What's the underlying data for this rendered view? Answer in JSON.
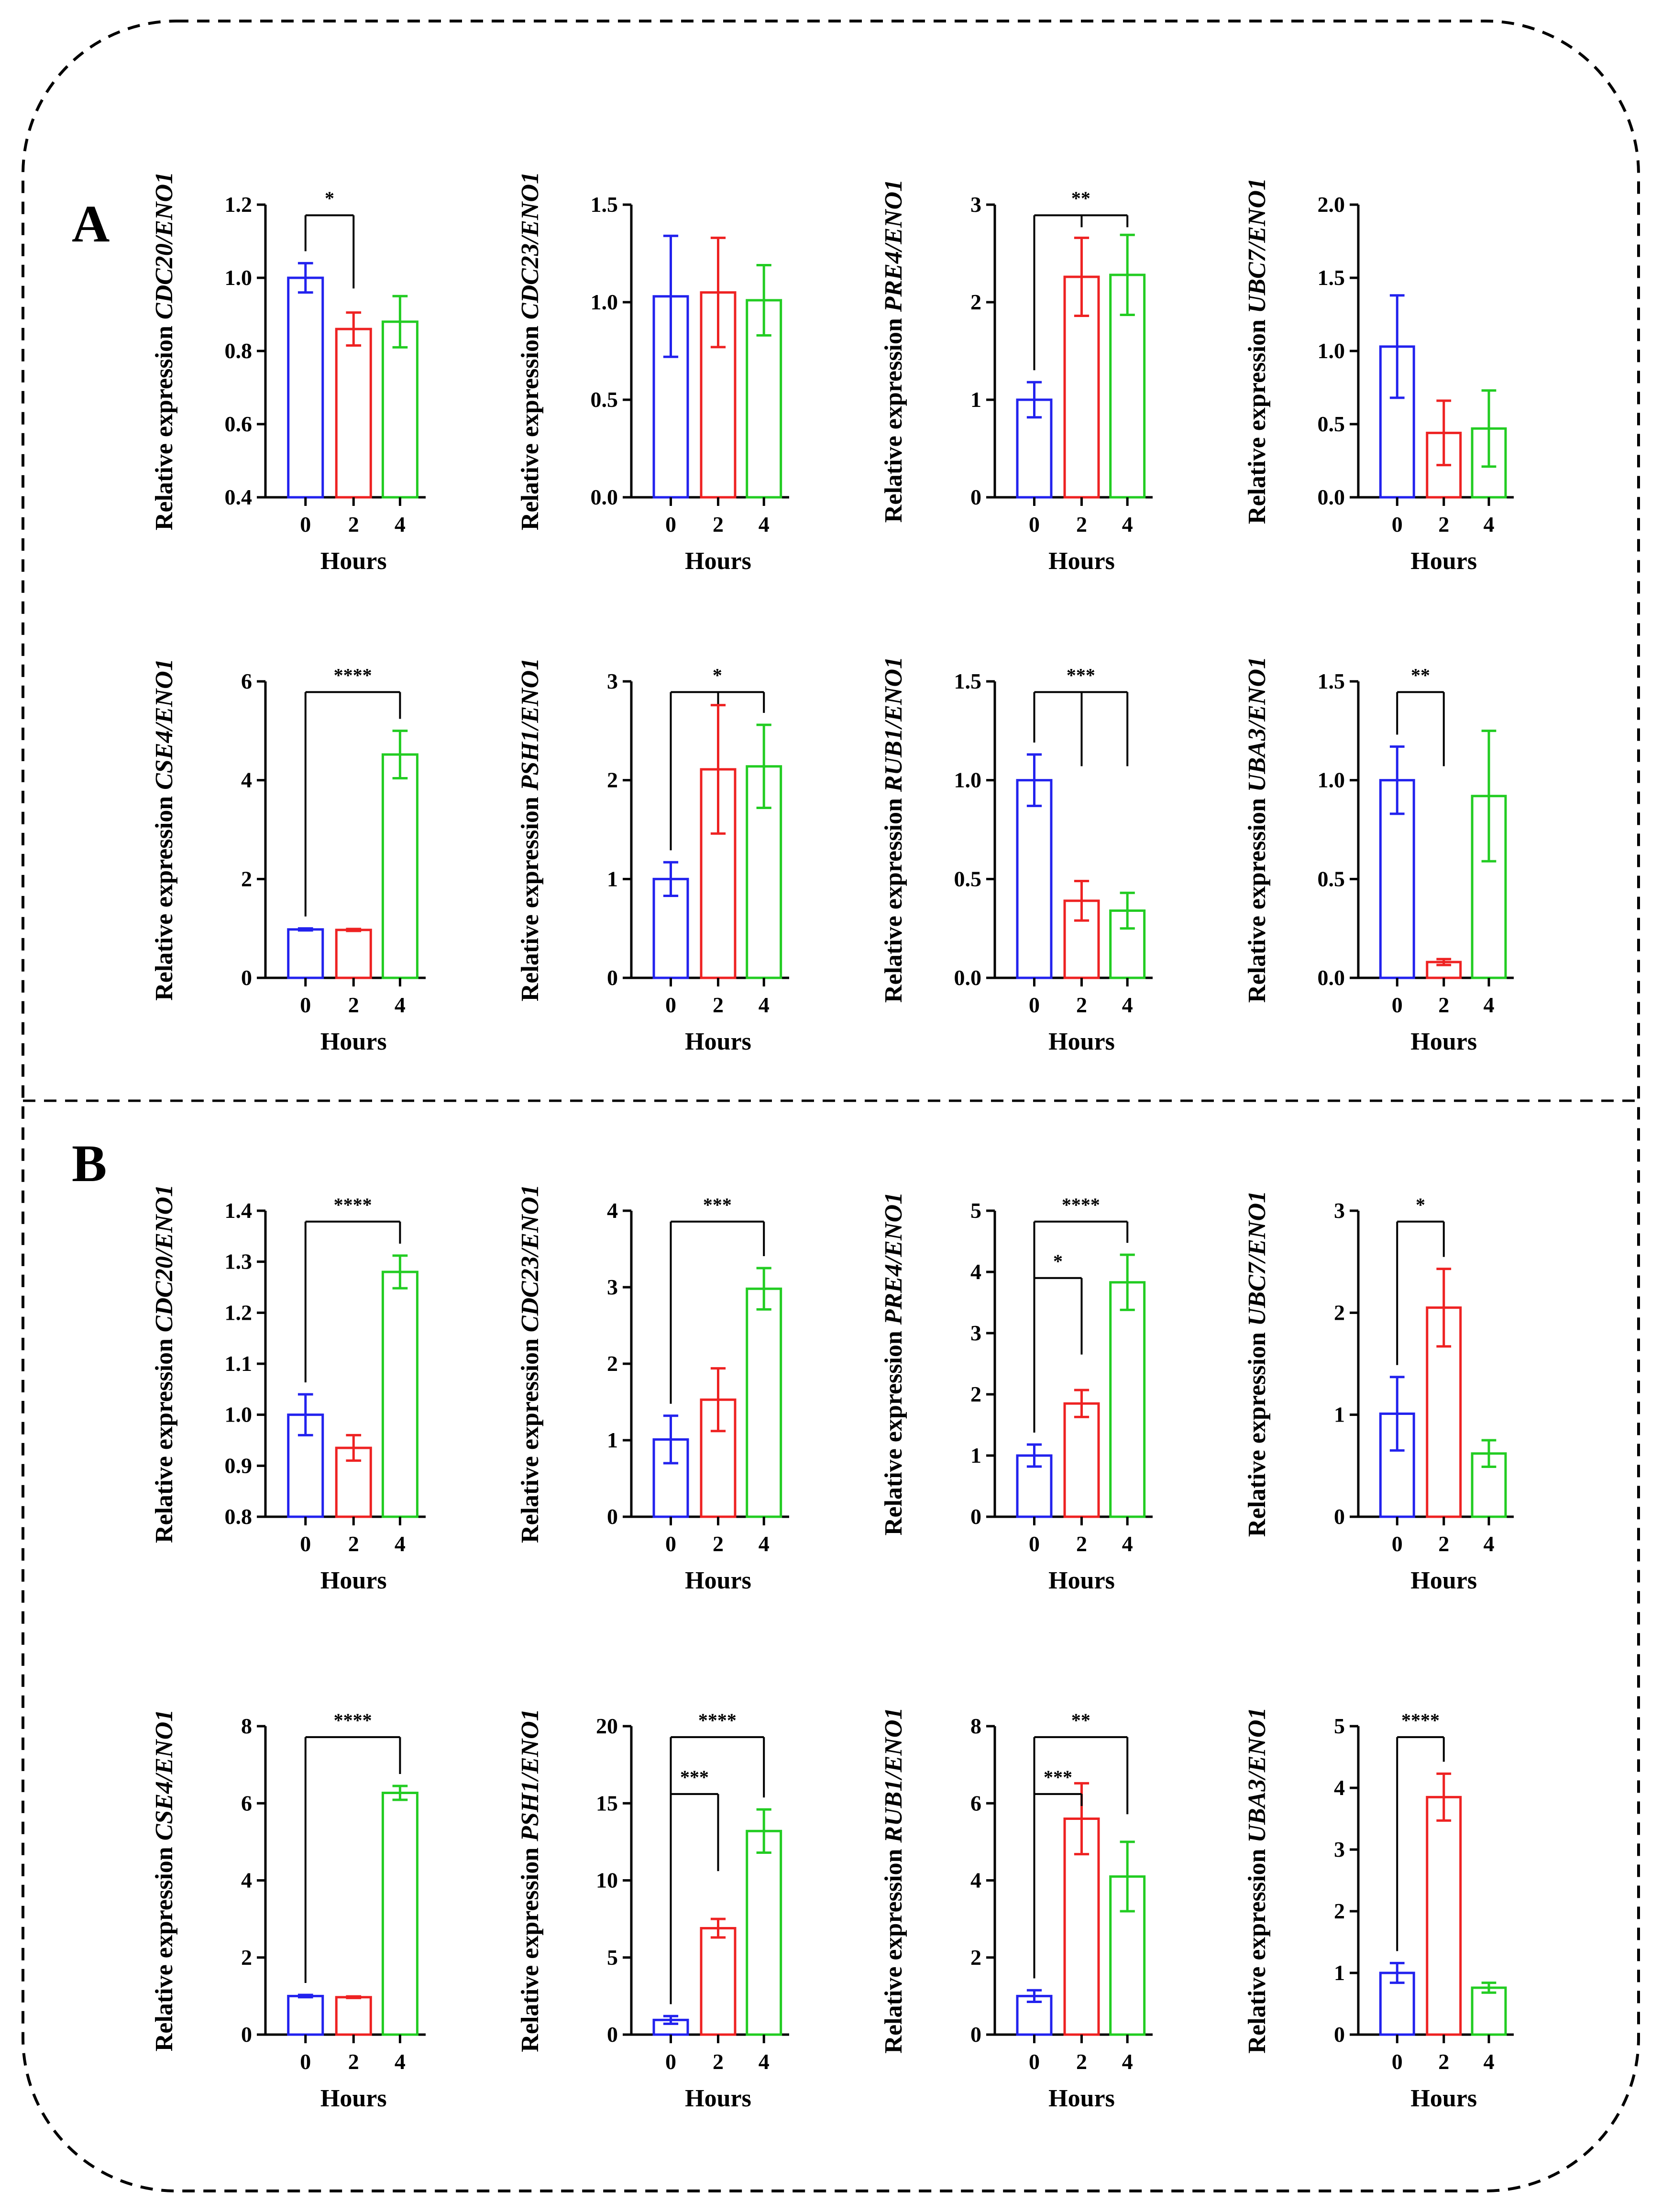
{
  "colors": {
    "h0": "#2222ee",
    "h2": "#ee2222",
    "h4": "#22cc22",
    "axis": "#000000"
  },
  "panels": [
    {
      "letter": "A"
    },
    {
      "letter": "B"
    }
  ],
  "chart_data": [
    {
      "type": "bar",
      "panel": "A",
      "categories": [
        "0",
        "2",
        "4"
      ],
      "values": [
        1.0,
        0.86,
        0.88
      ],
      "errors": [
        0.04,
        0.045,
        0.07
      ],
      "title": "",
      "xlabel": "Hours",
      "ylabel_prefix": "Relative expression ",
      "ylabel_gene": "CDC20/ENO1",
      "ylim": [
        0.4,
        1.2
      ],
      "yticks": [
        0.4,
        0.6,
        0.8,
        1.0,
        1.2
      ],
      "tick_labels": [
        "0.4",
        "0.6",
        "0.8",
        "1.0",
        "1.2"
      ],
      "significance": [
        {
          "from": 0,
          "to": [
            1
          ],
          "label": "*"
        }
      ]
    },
    {
      "type": "bar",
      "panel": "A",
      "categories": [
        "0",
        "2",
        "4"
      ],
      "values": [
        1.03,
        1.05,
        1.01
      ],
      "errors": [
        0.31,
        0.28,
        0.18
      ],
      "title": "",
      "xlabel": "Hours",
      "ylabel_prefix": "Relative expression ",
      "ylabel_gene": "CDC23/ENO1",
      "ylim": [
        0,
        1.5
      ],
      "yticks": [
        0,
        0.5,
        1.0,
        1.5
      ],
      "tick_labels": [
        "0.0",
        "0.5",
        "1.0",
        "1.5"
      ],
      "significance": []
    },
    {
      "type": "bar",
      "panel": "A",
      "categories": [
        "0",
        "2",
        "4"
      ],
      "values": [
        1.0,
        2.26,
        2.28
      ],
      "errors": [
        0.18,
        0.4,
        0.41
      ],
      "title": "",
      "xlabel": "Hours",
      "ylabel_prefix": "Relative expression ",
      "ylabel_gene": "PRE4/ENO1",
      "ylim": [
        0,
        3
      ],
      "yticks": [
        0,
        1,
        2,
        3
      ],
      "tick_labels": [
        "0",
        "1",
        "2",
        "3"
      ],
      "significance": [
        {
          "from": 0,
          "to": [
            1,
            2
          ],
          "label": "**"
        }
      ]
    },
    {
      "type": "bar",
      "panel": "A",
      "categories": [
        "0",
        "2",
        "4"
      ],
      "values": [
        1.03,
        0.44,
        0.47
      ],
      "errors": [
        0.35,
        0.22,
        0.26
      ],
      "title": "",
      "xlabel": "Hours",
      "ylabel_prefix": "Relative expression ",
      "ylabel_gene": "UBC7/ENO1",
      "ylim": [
        0,
        2.0
      ],
      "yticks": [
        0,
        0.5,
        1.0,
        1.5,
        2.0
      ],
      "tick_labels": [
        "0.0",
        "0.5",
        "1.0",
        "1.5",
        "2.0"
      ],
      "significance": []
    },
    {
      "type": "bar",
      "panel": "A",
      "categories": [
        "0",
        "2",
        "4"
      ],
      "values": [
        0.98,
        0.97,
        4.52
      ],
      "errors": [
        0.02,
        0.02,
        0.48
      ],
      "title": "",
      "xlabel": "Hours",
      "ylabel_prefix": "Relative expression ",
      "ylabel_gene": "CSE4/ENO1",
      "ylim": [
        0,
        6
      ],
      "yticks": [
        0,
        2,
        4,
        6
      ],
      "tick_labels": [
        "0",
        "2",
        "4",
        "6"
      ],
      "significance": [
        {
          "from": 0,
          "to": [
            2
          ],
          "label": "****"
        }
      ]
    },
    {
      "type": "bar",
      "panel": "A",
      "categories": [
        "0",
        "2",
        "4"
      ],
      "values": [
        1.0,
        2.11,
        2.14
      ],
      "errors": [
        0.17,
        0.65,
        0.42
      ],
      "title": "",
      "xlabel": "Hours",
      "ylabel_prefix": "Relative expression ",
      "ylabel_gene": "PSH1/ENO1",
      "ylim": [
        0,
        3
      ],
      "yticks": [
        0,
        1,
        2,
        3
      ],
      "tick_labels": [
        "0",
        "1",
        "2",
        "3"
      ],
      "significance": [
        {
          "from": 0,
          "to": [
            1,
            2
          ],
          "label": "*"
        }
      ]
    },
    {
      "type": "bar",
      "panel": "A",
      "categories": [
        "0",
        "2",
        "4"
      ],
      "values": [
        1.0,
        0.39,
        0.34
      ],
      "errors": [
        0.13,
        0.1,
        0.09
      ],
      "title": "",
      "xlabel": "Hours",
      "ylabel_prefix": "Relative expression ",
      "ylabel_gene": "RUB1/ENO1",
      "ylim": [
        0,
        1.5
      ],
      "yticks": [
        0,
        0.5,
        1.0,
        1.5
      ],
      "tick_labels": [
        "0.0",
        "0.5",
        "1.0",
        "1.5"
      ],
      "significance": [
        {
          "from": 0,
          "to": [
            1,
            2
          ],
          "label": "***"
        }
      ]
    },
    {
      "type": "bar",
      "panel": "A",
      "categories": [
        "0",
        "2",
        "4"
      ],
      "values": [
        1.0,
        0.08,
        0.92
      ],
      "errors": [
        0.17,
        0.015,
        0.33
      ],
      "title": "",
      "xlabel": "Hours",
      "ylabel_prefix": "Relative expression ",
      "ylabel_gene": "UBA3/ENO1",
      "ylim": [
        0,
        1.5
      ],
      "yticks": [
        0,
        0.5,
        1.0,
        1.5
      ],
      "tick_labels": [
        "0.0",
        "0.5",
        "1.0",
        "1.5"
      ],
      "significance": [
        {
          "from": 0,
          "to": [
            1
          ],
          "label": "**"
        }
      ]
    },
    {
      "type": "bar",
      "panel": "B",
      "categories": [
        "0",
        "2",
        "4"
      ],
      "values": [
        1.0,
        0.935,
        1.28
      ],
      "errors": [
        0.04,
        0.025,
        0.032
      ],
      "title": "",
      "xlabel": "Hours",
      "ylabel_prefix": "Relative expression ",
      "ylabel_gene": "CDC20/ENO1",
      "ylim": [
        0.8,
        1.4
      ],
      "yticks": [
        0.8,
        0.9,
        1.0,
        1.1,
        1.2,
        1.3,
        1.4
      ],
      "tick_labels": [
        "0.8",
        "0.9",
        "1.0",
        "1.1",
        "1.2",
        "1.3",
        "1.4"
      ],
      "significance": [
        {
          "from": 0,
          "to": [
            2
          ],
          "label": "****"
        }
      ]
    },
    {
      "type": "bar",
      "panel": "B",
      "categories": [
        "0",
        "2",
        "4"
      ],
      "values": [
        1.01,
        1.53,
        2.98
      ],
      "errors": [
        0.31,
        0.41,
        0.27
      ],
      "title": "",
      "xlabel": "Hours",
      "ylabel_prefix": "Relative expression ",
      "ylabel_gene": "CDC23/ENO1",
      "ylim": [
        0,
        4
      ],
      "yticks": [
        0,
        1,
        2,
        3,
        4
      ],
      "tick_labels": [
        "0",
        "1",
        "2",
        "3",
        "4"
      ],
      "significance": [
        {
          "from": 0,
          "to": [
            2
          ],
          "label": "***"
        }
      ]
    },
    {
      "type": "bar",
      "panel": "B",
      "categories": [
        "0",
        "2",
        "4"
      ],
      "values": [
        1.0,
        1.85,
        3.83
      ],
      "errors": [
        0.18,
        0.22,
        0.45
      ],
      "title": "",
      "xlabel": "Hours",
      "ylabel_prefix": "Relative expression ",
      "ylabel_gene": "PRE4/ENO1",
      "ylim": [
        0,
        5
      ],
      "yticks": [
        0,
        1,
        2,
        3,
        4,
        5
      ],
      "tick_labels": [
        "0",
        "1",
        "2",
        "3",
        "4",
        "5"
      ],
      "significance": [
        {
          "from": 0,
          "to": [
            2
          ],
          "label": "****"
        },
        {
          "from": 0,
          "to": [
            1
          ],
          "label": "*"
        }
      ]
    },
    {
      "type": "bar",
      "panel": "B",
      "categories": [
        "0",
        "2",
        "4"
      ],
      "values": [
        1.01,
        2.05,
        0.62
      ],
      "errors": [
        0.36,
        0.38,
        0.13
      ],
      "title": "",
      "xlabel": "Hours",
      "ylabel_prefix": "Relative expression ",
      "ylabel_gene": "UBC7/ENO1",
      "ylim": [
        0,
        3
      ],
      "yticks": [
        0,
        1,
        2,
        3
      ],
      "tick_labels": [
        "0",
        "1",
        "2",
        "3"
      ],
      "significance": [
        {
          "from": 0,
          "to": [
            1
          ],
          "label": "*"
        }
      ]
    },
    {
      "type": "bar",
      "panel": "B",
      "categories": [
        "0",
        "2",
        "4"
      ],
      "values": [
        1.0,
        0.97,
        6.27
      ],
      "errors": [
        0.03,
        0.02,
        0.18
      ],
      "title": "",
      "xlabel": "Hours",
      "ylabel_prefix": "Relative expression ",
      "ylabel_gene": "CSE4/ENO1",
      "ylim": [
        0,
        8
      ],
      "yticks": [
        0,
        2,
        4,
        6,
        8
      ],
      "tick_labels": [
        "0",
        "2",
        "4",
        "6",
        "8"
      ],
      "significance": [
        {
          "from": 0,
          "to": [
            2
          ],
          "label": "****"
        }
      ]
    },
    {
      "type": "bar",
      "panel": "B",
      "categories": [
        "0",
        "2",
        "4"
      ],
      "values": [
        0.95,
        6.9,
        13.2
      ],
      "errors": [
        0.25,
        0.6,
        1.4
      ],
      "title": "",
      "xlabel": "Hours",
      "ylabel_prefix": "Relative expression ",
      "ylabel_gene": "PSH1/ENO1",
      "ylim": [
        0,
        20
      ],
      "yticks": [
        0,
        5,
        10,
        15,
        20
      ],
      "tick_labels": [
        "0",
        "5",
        "10",
        "15",
        "20"
      ],
      "significance": [
        {
          "from": 0,
          "to": [
            2
          ],
          "label": "****"
        },
        {
          "from": 0,
          "to": [
            1
          ],
          "label": "***"
        }
      ]
    },
    {
      "type": "bar",
      "panel": "B",
      "categories": [
        "0",
        "2",
        "4"
      ],
      "values": [
        1.0,
        5.6,
        4.1
      ],
      "errors": [
        0.15,
        0.92,
        0.9
      ],
      "title": "",
      "xlabel": "Hours",
      "ylabel_prefix": "Relative expression ",
      "ylabel_gene": "RUB1/ENO1",
      "ylim": [
        0,
        8
      ],
      "yticks": [
        0,
        2,
        4,
        6,
        8
      ],
      "tick_labels": [
        "0",
        "2",
        "4",
        "6",
        "8"
      ],
      "significance": [
        {
          "from": 0,
          "to": [
            2
          ],
          "label": "**"
        },
        {
          "from": 0,
          "to": [
            1
          ],
          "label": "***"
        }
      ]
    },
    {
      "type": "bar",
      "panel": "B",
      "categories": [
        "0",
        "2",
        "4"
      ],
      "values": [
        1.0,
        3.85,
        0.76
      ],
      "errors": [
        0.16,
        0.38,
        0.08
      ],
      "title": "",
      "xlabel": "Hours",
      "ylabel_prefix": "Relative expression ",
      "ylabel_gene": "UBA3/ENO1",
      "ylim": [
        0,
        5
      ],
      "yticks": [
        0,
        1,
        2,
        3,
        4,
        5
      ],
      "tick_labels": [
        "0",
        "1",
        "2",
        "3",
        "4",
        "5"
      ],
      "significance": [
        {
          "from": 0,
          "to": [
            1
          ],
          "label": "****"
        }
      ]
    }
  ]
}
